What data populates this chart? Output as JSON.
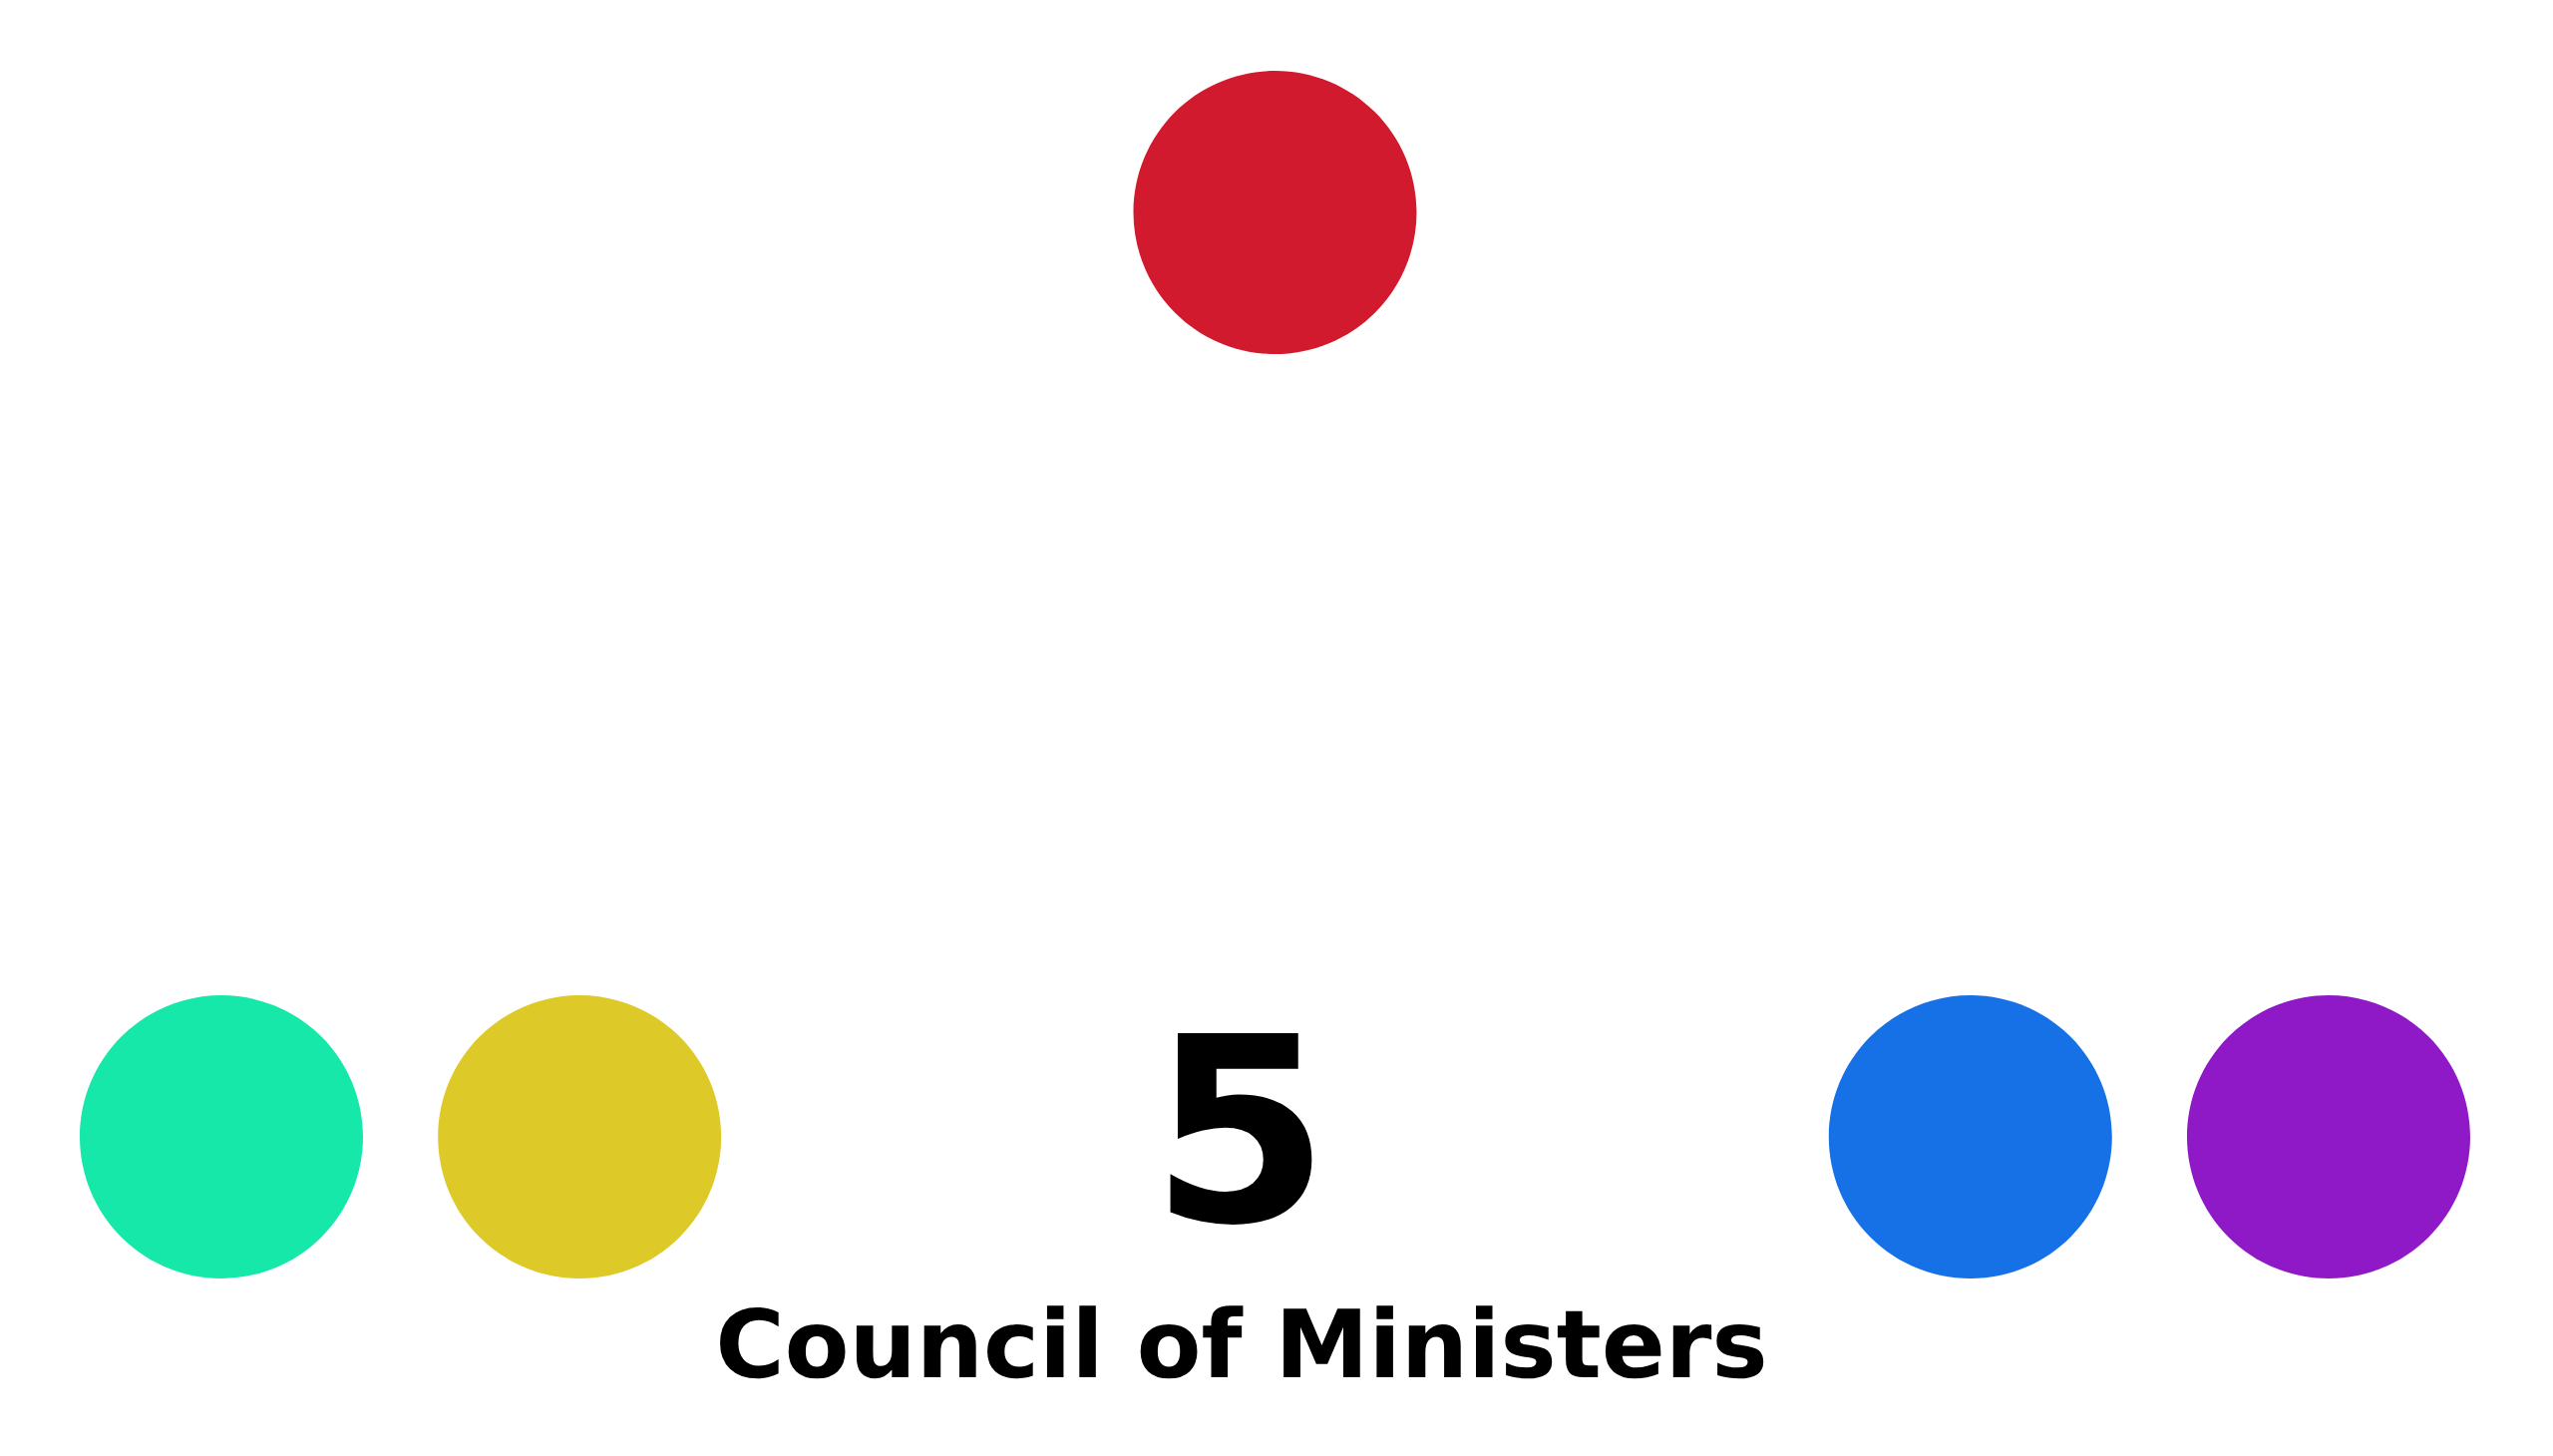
{
  "chart_data": {
    "type": "other",
    "title": "Council of Ministers",
    "categories": [
      null
    ],
    "values": [
      5
    ],
    "data_labels": true
  }
}
